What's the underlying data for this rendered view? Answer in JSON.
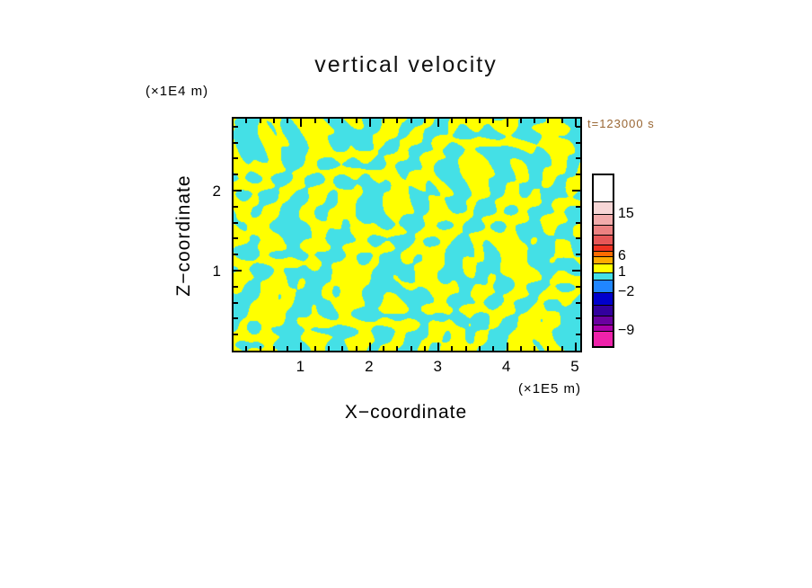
{
  "title": "vertical velocity",
  "time_label": "t=123000 s",
  "time_label_color": "#996633",
  "axes": {
    "x": {
      "label": "X−coordinate",
      "unit": "(×1E5 m)",
      "ticks": [
        {
          "label": "1",
          "value": 1
        },
        {
          "label": "2",
          "value": 2
        },
        {
          "label": "3",
          "value": 3
        },
        {
          "label": "4",
          "value": 4
        },
        {
          "label": "5",
          "value": 5
        }
      ]
    },
    "z": {
      "label": "Z−coordinate",
      "unit": "(×1E4 m)",
      "ticks": [
        {
          "label": "1",
          "value": 1
        },
        {
          "label": "2",
          "value": 2
        }
      ]
    }
  },
  "colorbar": {
    "segments": [
      {
        "color": "#ffffff",
        "h": 29
      },
      {
        "color": "#f7d6d6",
        "h": 14
      },
      {
        "color": "#f2abab",
        "h": 12
      },
      {
        "color": "#ec8181",
        "h": 11
      },
      {
        "color": "#e65757",
        "h": 11
      },
      {
        "color": "#ee3222",
        "h": 7
      },
      {
        "color": "#ff6a00",
        "h": 6
      },
      {
        "color": "#ffaa00",
        "h": 8
      },
      {
        "color": "#ffff00",
        "h": 10
      },
      {
        "color": "#44e0e6",
        "h": 8
      },
      {
        "color": "#2086ff",
        "h": 14
      },
      {
        "color": "#0000cc",
        "h": 14
      },
      {
        "color": "#32009e",
        "h": 12
      },
      {
        "color": "#6a00a0",
        "h": 10
      },
      {
        "color": "#aa00aa",
        "h": 7
      },
      {
        "color": "#ee22aa",
        "h": 17
      }
    ],
    "labels": [
      {
        "text": "15",
        "y": 43
      },
      {
        "text": "6",
        "y": 90
      },
      {
        "text": "1",
        "y": 108
      },
      {
        "text": "−2",
        "y": 130
      },
      {
        "text": "−9",
        "y": 173
      }
    ]
  },
  "chart_data": {
    "type": "heatmap",
    "title": "vertical velocity",
    "xlabel": "X−coordinate (×1E5 m)",
    "ylabel": "Z−coordinate (×1E4 m)",
    "time_annotation": "t=123000 s",
    "x_range": [
      0,
      5.1
    ],
    "z_range": [
      0,
      2.94
    ],
    "x_ticks": [
      1,
      2,
      3,
      4,
      5
    ],
    "z_ticks": [
      1,
      2
    ],
    "minor_tick_step": 0.2,
    "colorbar_levels": [
      15,
      6,
      1,
      -2,
      -9
    ],
    "field_note": "two-tone filamentary vertical-velocity field: yellow = positive values (~1), cyan = negative values (~-2); rendered procedurally from pattern terms",
    "positive_color": "#ffff00",
    "negative_color": "#44e0e6",
    "pattern": {
      "threshold": 0,
      "terms": [
        {
          "amp": 1.0,
          "kx": 0.16,
          "ky": 0.05,
          "m": 2.2,
          "mx": 0.021,
          "my": 0.052,
          "p2": 1.0,
          "p1": 0.0
        },
        {
          "amp": 0.9,
          "kx": 0.042,
          "ky": -0.16,
          "m": 2.8,
          "mx": 0.013,
          "my": 0.071,
          "p2": 4.0,
          "p1": 0.5
        },
        {
          "amp": 0.8,
          "kx": 0.118,
          "ky": 0.094,
          "m": 2.4,
          "mx": 0.018,
          "my": 0.029,
          "p2": 2.0,
          "p1": 1.2
        },
        {
          "amp": 0.55,
          "kx": 0.23,
          "ky": -0.17,
          "m": 2.0,
          "mx": 0.033,
          "my": 0.027,
          "p2": 5.0,
          "p1": 2.6
        }
      ]
    }
  }
}
